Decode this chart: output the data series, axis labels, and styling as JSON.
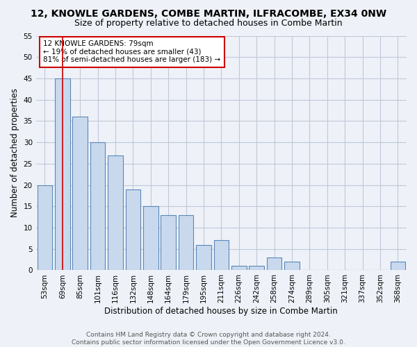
{
  "title": "12, KNOWLE GARDENS, COMBE MARTIN, ILFRACOMBE, EX34 0NW",
  "subtitle": "Size of property relative to detached houses in Combe Martin",
  "xlabel": "Distribution of detached houses by size in Combe Martin",
  "ylabel": "Number of detached properties",
  "categories": [
    "53sqm",
    "69sqm",
    "85sqm",
    "101sqm",
    "116sqm",
    "132sqm",
    "148sqm",
    "164sqm",
    "179sqm",
    "195sqm",
    "211sqm",
    "226sqm",
    "242sqm",
    "258sqm",
    "274sqm",
    "289sqm",
    "305sqm",
    "321sqm",
    "337sqm",
    "352sqm",
    "368sqm"
  ],
  "values": [
    20,
    45,
    36,
    30,
    27,
    19,
    15,
    13,
    13,
    6,
    7,
    1,
    1,
    3,
    2,
    0,
    0,
    0,
    0,
    0,
    2
  ],
  "bar_color": "#c9d9ed",
  "bar_edge_color": "#5a87b8",
  "grid_color": "#c0c8d8",
  "background_color": "#eef2f8",
  "vline_x": 1,
  "vline_color": "#cc0000",
  "annotation_text": "12 KNOWLE GARDENS: 79sqm\n← 19% of detached houses are smaller (43)\n81% of semi-detached houses are larger (183) →",
  "annotation_box_color": "#ffffff",
  "annotation_box_edge": "#cc0000",
  "ylim": [
    0,
    55
  ],
  "yticks": [
    0,
    5,
    10,
    15,
    20,
    25,
    30,
    35,
    40,
    45,
    50,
    55
  ],
  "footer": "Contains HM Land Registry data © Crown copyright and database right 2024.\nContains public sector information licensed under the Open Government Licence v3.0.",
  "title_fontsize": 10,
  "subtitle_fontsize": 9,
  "xlabel_fontsize": 8.5,
  "ylabel_fontsize": 8.5,
  "tick_fontsize": 7.5,
  "annotation_fontsize": 7.5,
  "footer_fontsize": 6.5
}
